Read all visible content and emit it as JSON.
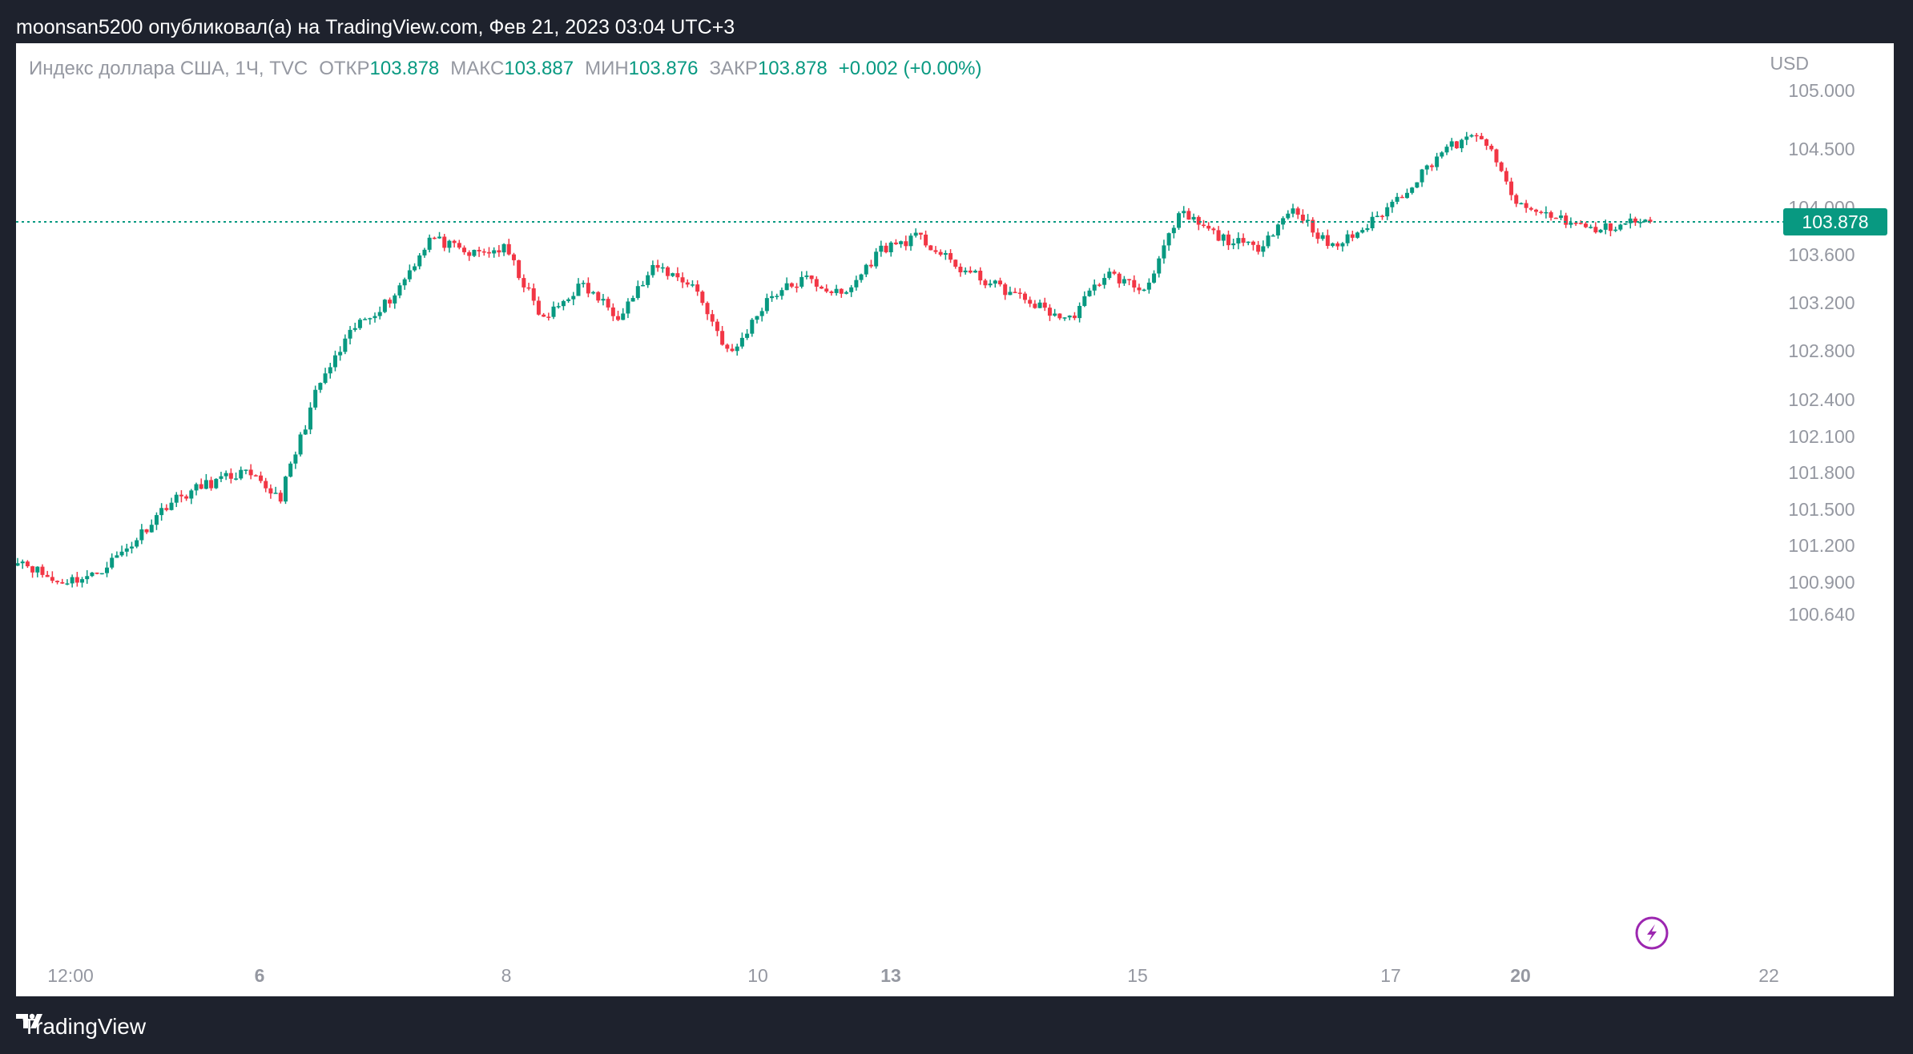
{
  "header": {
    "text": "moonsan5200 опубликовал(а) на TradingView.com, Фев 21, 2023 03:04 UTC+3"
  },
  "legend": {
    "title": "Индекс доллара США, 1Ч, TVC",
    "open_label": "ОТКР",
    "open_value": "103.878",
    "high_label": "МАКС",
    "high_value": "103.887",
    "low_label": "МИН",
    "low_value": "103.876",
    "close_label": "ЗАКР",
    "close_value": "103.878",
    "change": "+0.002 (+0.00%)"
  },
  "currency": "USD",
  "last_price": "103.878",
  "footer": {
    "brand": "TradingView",
    "logo_icon": "tradingview-logo-icon"
  },
  "colors": {
    "up": "#089981",
    "down": "#f23645",
    "price_line": "#089981",
    "flash_icon": "#9c27b0"
  },
  "chart_data": {
    "type": "candlestick",
    "timeframe": "1h",
    "y_axis_labels": [
      "105.000",
      "104.500",
      "104.000",
      "103.600",
      "103.200",
      "102.800",
      "102.400",
      "102.100",
      "101.800",
      "101.500",
      "101.200",
      "100.900",
      "100.640"
    ],
    "x_axis_labels": [
      {
        "label": "12:00",
        "bold": false
      },
      {
        "label": "6",
        "bold": true
      },
      {
        "label": "8",
        "bold": false
      },
      {
        "label": "10",
        "bold": false
      },
      {
        "label": "13",
        "bold": true
      },
      {
        "label": "15",
        "bold": false
      },
      {
        "label": "17",
        "bold": false
      },
      {
        "label": "20",
        "bold": true
      },
      {
        "label": "22",
        "bold": false
      }
    ],
    "ylim": [
      100.64,
      105.0
    ],
    "last_price": 103.878,
    "series": [
      {
        "x": 0.0,
        "close": 101.1
      },
      {
        "x": 0.02,
        "close": 100.9
      },
      {
        "x": 0.04,
        "close": 100.95
      },
      {
        "x": 0.06,
        "close": 101.2
      },
      {
        "x": 0.08,
        "close": 101.55
      },
      {
        "x": 0.1,
        "close": 101.7
      },
      {
        "x": 0.12,
        "close": 101.8
      },
      {
        "x": 0.14,
        "close": 101.6
      },
      {
        "x": 0.16,
        "close": 102.5
      },
      {
        "x": 0.18,
        "close": 103.0
      },
      {
        "x": 0.2,
        "close": 103.25
      },
      {
        "x": 0.22,
        "close": 103.75
      },
      {
        "x": 0.24,
        "close": 103.6
      },
      {
        "x": 0.26,
        "close": 103.65
      },
      {
        "x": 0.28,
        "close": 103.05
      },
      {
        "x": 0.3,
        "close": 103.35
      },
      {
        "x": 0.32,
        "close": 103.1
      },
      {
        "x": 0.34,
        "close": 103.5
      },
      {
        "x": 0.36,
        "close": 103.35
      },
      {
        "x": 0.38,
        "close": 102.75
      },
      {
        "x": 0.4,
        "close": 103.25
      },
      {
        "x": 0.42,
        "close": 103.4
      },
      {
        "x": 0.44,
        "close": 103.25
      },
      {
        "x": 0.46,
        "close": 103.65
      },
      {
        "x": 0.48,
        "close": 103.75
      },
      {
        "x": 0.5,
        "close": 103.5
      },
      {
        "x": 0.52,
        "close": 103.35
      },
      {
        "x": 0.54,
        "close": 103.2
      },
      {
        "x": 0.56,
        "close": 103.05
      },
      {
        "x": 0.58,
        "close": 103.45
      },
      {
        "x": 0.6,
        "close": 103.3
      },
      {
        "x": 0.62,
        "close": 103.95
      },
      {
        "x": 0.64,
        "close": 103.75
      },
      {
        "x": 0.66,
        "close": 103.65
      },
      {
        "x": 0.68,
        "close": 104.0
      },
      {
        "x": 0.7,
        "close": 103.65
      },
      {
        "x": 0.72,
        "close": 103.85
      },
      {
        "x": 0.74,
        "close": 104.15
      },
      {
        "x": 0.76,
        "close": 104.5
      },
      {
        "x": 0.78,
        "close": 104.62
      },
      {
        "x": 0.8,
        "close": 104.0
      },
      {
        "x": 0.82,
        "close": 103.92
      },
      {
        "x": 0.84,
        "close": 103.8
      },
      {
        "x": 0.86,
        "close": 103.88
      },
      {
        "x": 0.87,
        "close": 103.878
      }
    ]
  }
}
